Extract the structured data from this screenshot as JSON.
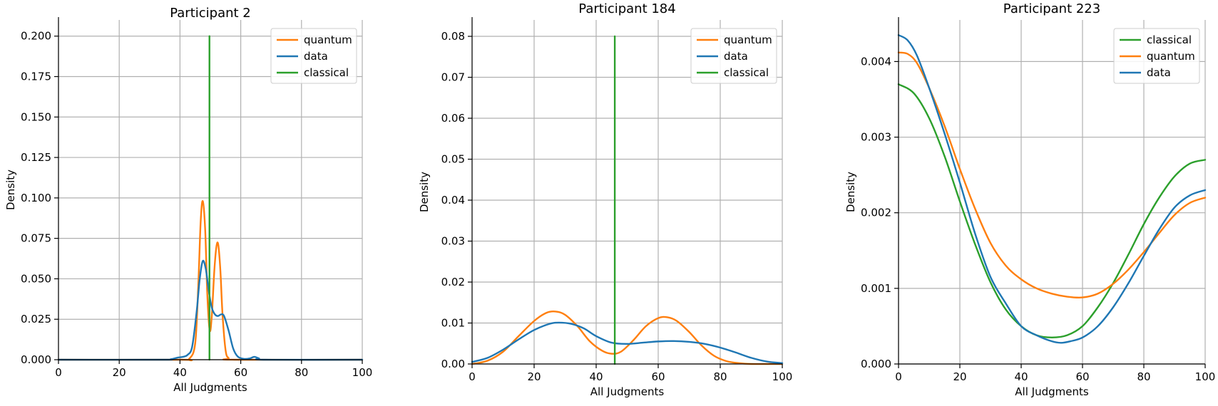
{
  "chart_data": [
    {
      "type": "line",
      "title": "Participant 2",
      "xlabel": "All Judgments",
      "ylabel": "Density",
      "xlim": [
        0,
        100
      ],
      "ylim": [
        0,
        0.21
      ],
      "xticks": [
        "0",
        "20",
        "40",
        "60",
        "80",
        "100"
      ],
      "xtick_values": [
        0,
        20,
        40,
        60,
        80,
        100
      ],
      "yticks": [
        "0.000",
        "0.025",
        "0.050",
        "0.075",
        "0.100",
        "0.125",
        "0.150",
        "0.175",
        "0.200"
      ],
      "ytick_values": [
        0,
        0.025,
        0.05,
        0.075,
        0.1,
        0.125,
        0.15,
        0.175,
        0.2
      ],
      "grid": true,
      "legend_position": "top-right",
      "series": [
        {
          "name": "quantum",
          "color": "#ff7f0e",
          "x": [
            0,
            40,
            43,
            45,
            46,
            46.8,
            47.5,
            48.3,
            49,
            49.8,
            50.5,
            51.3,
            52,
            52.6,
            53.3,
            54,
            55,
            56,
            58,
            100
          ],
          "y": [
            0,
            0,
            0.0005,
            0.01,
            0.045,
            0.085,
            0.098,
            0.08,
            0.04,
            0.018,
            0.028,
            0.055,
            0.07,
            0.071,
            0.055,
            0.028,
            0.006,
            0.001,
            0,
            0
          ]
        },
        {
          "name": "data",
          "color": "#1f77b4",
          "x": [
            0,
            34,
            37,
            39,
            41,
            42.5,
            44,
            45.5,
            46.5,
            47.5,
            48.5,
            49.5,
            50.5,
            51.5,
            52.5,
            53.5,
            54.5,
            56,
            57.5,
            59,
            61,
            63,
            64.5,
            66,
            68,
            100
          ],
          "y": [
            0,
            0,
            0.0003,
            0.0012,
            0.0018,
            0.003,
            0.008,
            0.03,
            0.05,
            0.061,
            0.056,
            0.042,
            0.032,
            0.028,
            0.027,
            0.028,
            0.027,
            0.018,
            0.007,
            0.002,
            0.0005,
            0.0008,
            0.0018,
            0.0008,
            0,
            0
          ]
        },
        {
          "name": "classical",
          "color": "#2ca02c",
          "x": [
            49.7,
            49.7
          ],
          "y": [
            0,
            0.2
          ]
        }
      ]
    },
    {
      "type": "line",
      "title": "Participant 184",
      "xlabel": "All Judgments",
      "ylabel": "Density",
      "xlim": [
        0,
        100
      ],
      "ylim": [
        0,
        0.084
      ],
      "xticks": [
        "0",
        "20",
        "40",
        "60",
        "80",
        "100"
      ],
      "xtick_values": [
        0,
        20,
        40,
        60,
        80,
        100
      ],
      "yticks": [
        "0.00",
        "0.01",
        "0.02",
        "0.03",
        "0.04",
        "0.05",
        "0.06",
        "0.07",
        "0.08"
      ],
      "ytick_values": [
        0,
        0.01,
        0.02,
        0.03,
        0.04,
        0.05,
        0.06,
        0.07,
        0.08
      ],
      "grid": true,
      "legend_position": "top-right",
      "series": [
        {
          "name": "quantum",
          "color": "#ff7f0e",
          "x": [
            0,
            5,
            10,
            15,
            20,
            24,
            27,
            30,
            34,
            38,
            42,
            45,
            48,
            52,
            56,
            60,
            63,
            66,
            70,
            74,
            78,
            82,
            86,
            90,
            95,
            100
          ],
          "y": [
            0,
            0.0008,
            0.003,
            0.0068,
            0.0105,
            0.0125,
            0.0128,
            0.012,
            0.0092,
            0.0055,
            0.0032,
            0.0025,
            0.003,
            0.0058,
            0.0092,
            0.0112,
            0.0114,
            0.0105,
            0.0078,
            0.0045,
            0.002,
            0.0007,
            0.0002,
            0,
            0,
            0
          ]
        },
        {
          "name": "data",
          "color": "#1f77b4",
          "x": [
            0,
            5,
            10,
            15,
            20,
            25,
            28,
            32,
            36,
            40,
            45,
            50,
            55,
            60,
            65,
            70,
            75,
            80,
            85,
            90,
            95,
            100
          ],
          "y": [
            0.0005,
            0.0015,
            0.0035,
            0.006,
            0.0083,
            0.0098,
            0.0101,
            0.0098,
            0.0087,
            0.0068,
            0.0052,
            0.0049,
            0.0052,
            0.0055,
            0.0056,
            0.0054,
            0.0049,
            0.004,
            0.0028,
            0.0015,
            0.0006,
            0.0002
          ]
        },
        {
          "name": "classical",
          "color": "#2ca02c",
          "x": [
            46,
            46
          ],
          "y": [
            0,
            0.08
          ]
        }
      ]
    },
    {
      "type": "line",
      "title": "Participant 223",
      "xlabel": "All Judgments",
      "ylabel": "Density",
      "xlim": [
        0,
        100
      ],
      "ylim": [
        0,
        0.00455
      ],
      "xticks": [
        "0",
        "20",
        "40",
        "60",
        "80",
        "100"
      ],
      "xtick_values": [
        0,
        20,
        40,
        60,
        80,
        100
      ],
      "yticks": [
        "0.000",
        "0.001",
        "0.002",
        "0.003",
        "0.004"
      ],
      "ytick_values": [
        0,
        0.001,
        0.002,
        0.003,
        0.004
      ],
      "grid": true,
      "legend_position": "top-right",
      "series": [
        {
          "name": "classical",
          "color": "#2ca02c",
          "x": [
            0,
            5,
            10,
            15,
            20,
            25,
            30,
            35,
            40,
            45,
            50,
            55,
            60,
            65,
            70,
            75,
            80,
            85,
            90,
            95,
            100
          ],
          "y": [
            0.0037,
            0.00358,
            0.00325,
            0.00275,
            0.00215,
            0.00158,
            0.00108,
            0.00072,
            0.0005,
            0.00038,
            0.00035,
            0.00038,
            0.0005,
            0.00075,
            0.00107,
            0.00145,
            0.00185,
            0.0022,
            0.00248,
            0.00265,
            0.0027
          ]
        },
        {
          "name": "quantum",
          "color": "#ff7f0e",
          "x": [
            0,
            3,
            6,
            10,
            15,
            20,
            25,
            30,
            35,
            40,
            45,
            50,
            55,
            60,
            65,
            70,
            75,
            80,
            85,
            90,
            95,
            100
          ],
          "y": [
            0.00412,
            0.0041,
            0.00398,
            0.00365,
            0.00315,
            0.00258,
            0.00205,
            0.0016,
            0.0013,
            0.00112,
            0.001,
            0.00093,
            0.00089,
            0.00088,
            0.00093,
            0.00106,
            0.00125,
            0.00148,
            0.00173,
            0.00197,
            0.00213,
            0.0022
          ]
        },
        {
          "name": "data",
          "color": "#1f77b4",
          "x": [
            0,
            3,
            6,
            10,
            15,
            20,
            25,
            30,
            35,
            40,
            45,
            50,
            53,
            56,
            60,
            65,
            70,
            75,
            80,
            85,
            90,
            95,
            100
          ],
          "y": [
            0.00435,
            0.00428,
            0.00408,
            0.00365,
            0.00305,
            0.0024,
            0.00172,
            0.00115,
            0.0008,
            0.0005,
            0.00038,
            0.0003,
            0.00028,
            0.0003,
            0.00035,
            0.0005,
            0.00075,
            0.00107,
            0.00143,
            0.00178,
            0.00207,
            0.00223,
            0.0023
          ]
        }
      ]
    }
  ]
}
